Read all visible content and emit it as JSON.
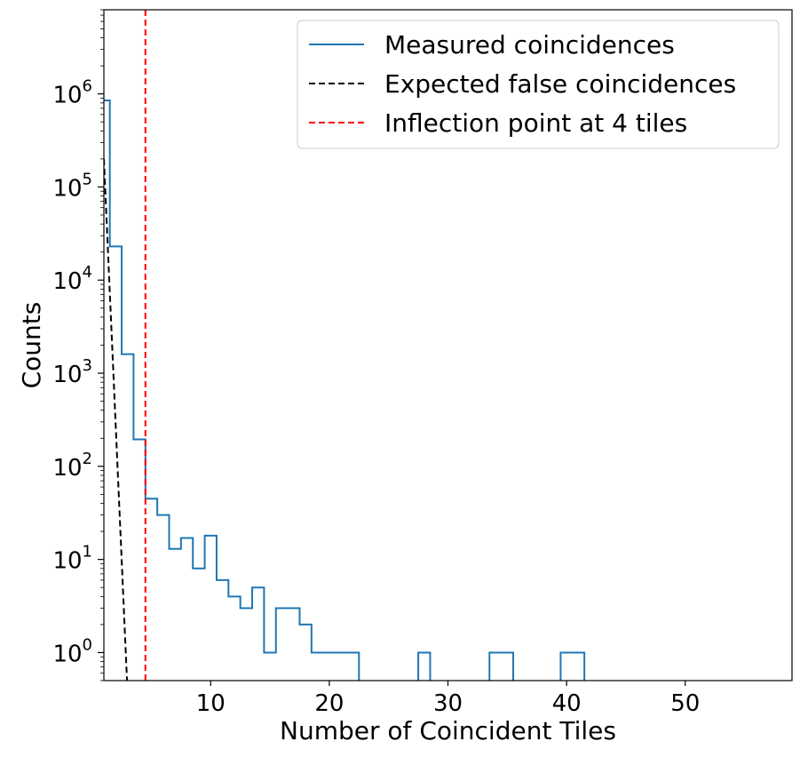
{
  "chart_data": {
    "type": "line",
    "title": "",
    "xlabel": "Number of Coincident Tiles",
    "ylabel": "Counts",
    "xlim": [
      1,
      59
    ],
    "ylim": [
      0.5,
      8000000
    ],
    "yscale": "log",
    "grid": false,
    "legend_position": "top-right",
    "x_ticks": [
      {
        "value": 10,
        "label": "10"
      },
      {
        "value": 20,
        "label": "20"
      },
      {
        "value": 30,
        "label": "30"
      },
      {
        "value": 40,
        "label": "40"
      },
      {
        "value": 50,
        "label": "50"
      }
    ],
    "y_ticks": [
      {
        "value": 1,
        "base": "10",
        "exp": "0"
      },
      {
        "value": 10,
        "base": "10",
        "exp": "1"
      },
      {
        "value": 100,
        "base": "10",
        "exp": "2"
      },
      {
        "value": 1000,
        "base": "10",
        "exp": "3"
      },
      {
        "value": 10000,
        "base": "10",
        "exp": "4"
      },
      {
        "value": 100000,
        "base": "10",
        "exp": "5"
      },
      {
        "value": 1000000,
        "base": "10",
        "exp": "6"
      }
    ],
    "series": [
      {
        "name": "Measured coincidences",
        "style": "step",
        "color": "#1f77b4",
        "bin_edges": [
          0.5,
          1.5,
          2.5,
          3.5,
          4.5,
          5.5,
          6.5,
          7.5,
          8.5,
          9.5,
          10.5,
          11.5,
          12.5,
          13.5,
          14.5,
          15.5,
          16.5,
          17.5,
          18.5,
          19.5,
          20.5,
          21.5,
          22.5,
          23.5,
          24.5,
          25.5,
          26.5,
          27.5,
          28.5,
          29.5,
          30.5,
          31.5,
          32.5,
          33.5,
          34.5,
          35.5,
          36.5,
          37.5,
          38.5,
          39.5,
          40.5,
          41.5
        ],
        "counts": [
          850000,
          23000,
          1600,
          195,
          45,
          30,
          13,
          17,
          8,
          18,
          6,
          4,
          3,
          5,
          1,
          3,
          3,
          2,
          1,
          1,
          1,
          1,
          0,
          0,
          0,
          0,
          0,
          1,
          0,
          0,
          0,
          0,
          0,
          1,
          1,
          0,
          0,
          0,
          0,
          1,
          1
        ]
      },
      {
        "name": "Expected false coincidences",
        "style": "dashed",
        "color": "#000000",
        "x": [
          1.0,
          2.95
        ],
        "y": [
          200000,
          0.5
        ]
      },
      {
        "name": "Inflection point at 4 tiles",
        "style": "vline-dashed",
        "color": "#ff0000",
        "x_value": 4.5
      }
    ]
  }
}
